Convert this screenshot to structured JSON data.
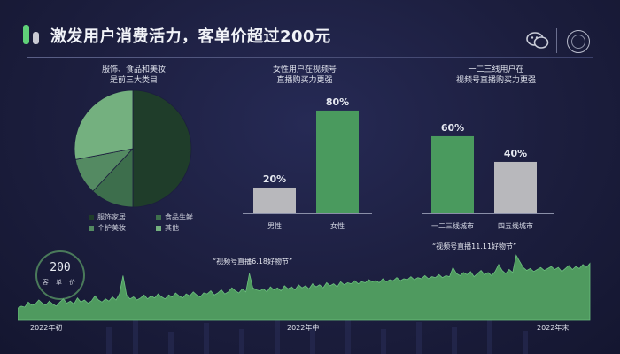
{
  "page": {
    "title": "激发用户消费活力，客单价超过200元"
  },
  "colors": {
    "bg": "#1c1e3e",
    "accent": "#5fd178",
    "bar_green": "#4a9a5e",
    "bar_gray": "#b8b8bc",
    "area_green": "#4f9a5f"
  },
  "icons": [
    "app-logo-icon",
    "wechat-icon",
    "brand-badge-icon"
  ],
  "chart_data": [
    {
      "type": "pie",
      "title": "服饰、食品和美妆\n是前三大类目",
      "categories": [
        "服饰家居",
        "食品生鲜",
        "个护美妆",
        "其他"
      ],
      "values": [
        50,
        12,
        10,
        28
      ],
      "colors": [
        "#1f3d2a",
        "#3d6e4c",
        "#548a62",
        "#74b07f"
      ],
      "legend_position": "bottom"
    },
    {
      "type": "bar",
      "title": "女性用户在视频号\n直播购买力更强",
      "categories": [
        "男性",
        "女性"
      ],
      "values": [
        20,
        80
      ],
      "labels": [
        "20%",
        "80%"
      ],
      "colors": [
        "#b8b8bc",
        "#4a9a5e"
      ],
      "ylim": [
        0,
        100
      ]
    },
    {
      "type": "bar",
      "title": "一二三线用户在\n视频号直播购买力更强",
      "categories": [
        "一二三线城市",
        "四五线城市"
      ],
      "values": [
        60,
        40
      ],
      "labels": [
        "60%",
        "40%"
      ],
      "colors": [
        "#4a9a5e",
        "#b8b8bc"
      ],
      "ylim": [
        0,
        100
      ]
    },
    {
      "type": "area",
      "x_tick_labels": [
        "2022年初",
        "2022年中",
        "2022年末"
      ],
      "annotations": [
        "“视频号直播6.18好物节”",
        "“视频号直播11.11好物节”"
      ],
      "kpi": {
        "value": "200",
        "unit_label": "客 单 价"
      },
      "series": [
        {
          "values": [
            12,
            14,
            13,
            18,
            15,
            16,
            20,
            17,
            15,
            19,
            16,
            14,
            18,
            21,
            17,
            19,
            16,
            22,
            18,
            20,
            17,
            19,
            24,
            20,
            18,
            21,
            19,
            23,
            20,
            26,
            44,
            25,
            21,
            23,
            20,
            22,
            25,
            21,
            24,
            22,
            26,
            23,
            21,
            25,
            23,
            27,
            24,
            22,
            26,
            24,
            28,
            25,
            23,
            27,
            26,
            29,
            25,
            27,
            30,
            26,
            28,
            32,
            29,
            27,
            31,
            28,
            46,
            32,
            30,
            29,
            31,
            28,
            33,
            30,
            32,
            29,
            34,
            31,
            33,
            30,
            35,
            32,
            34,
            31,
            36,
            33,
            35,
            32,
            37,
            34,
            36,
            33,
            38,
            35,
            37,
            36,
            39,
            36,
            38,
            37,
            40,
            38,
            39,
            37,
            41,
            38,
            40,
            39,
            42,
            39,
            41,
            40,
            43,
            40,
            42,
            41,
            44,
            41,
            43,
            42,
            45,
            42,
            44,
            43,
            52,
            46,
            44,
            47,
            45,
            48,
            43,
            46,
            49,
            45,
            47,
            44,
            48,
            55,
            49,
            46,
            50,
            47,
            64,
            58,
            52,
            49,
            51,
            48,
            50,
            52,
            49,
            51,
            53,
            50,
            52,
            48,
            51,
            54,
            50,
            53,
            51,
            55,
            52,
            56
          ]
        }
      ],
      "ylim": [
        0,
        80
      ]
    }
  ]
}
